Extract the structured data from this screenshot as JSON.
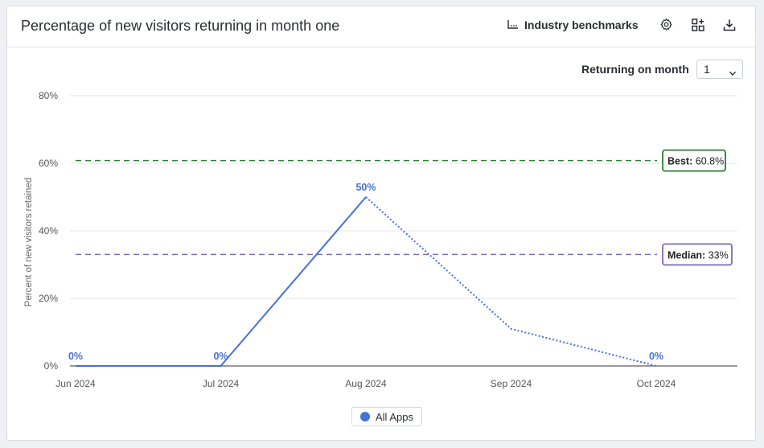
{
  "header": {
    "title": "Percentage of new visitors returning in month one",
    "benchmarks_label": "Industry benchmarks"
  },
  "controls": {
    "returning_label": "Returning on month",
    "month_value": "1"
  },
  "colors": {
    "series": "#4472d9",
    "best": "#2e7d32",
    "median": "#7e6bb7",
    "grid": "#e3e5e8",
    "axis": "#333333"
  },
  "chart_data": {
    "type": "line",
    "title": "Percentage of new visitors returning in month one",
    "xlabel": "",
    "ylabel": "Percent of new visitors retained",
    "categories": [
      "Jun 2024",
      "Jul 2024",
      "Aug 2024",
      "Sep 2024",
      "Oct 2024"
    ],
    "y_ticks": [
      "0%",
      "20%",
      "40%",
      "60%",
      "80%"
    ],
    "ylim": [
      0,
      80
    ],
    "grid": true,
    "legend": "bottom",
    "series": [
      {
        "name": "All Apps",
        "values": [
          0,
          0,
          50,
          11,
          0
        ],
        "data_labels": [
          "0%",
          "0%",
          "50%",
          "",
          "0%"
        ],
        "solid_until_index": 2
      }
    ],
    "benchmarks": [
      {
        "label": "Best:",
        "value_text": "60.8%",
        "value": 60.8
      },
      {
        "label": "Median:",
        "value_text": "33%",
        "value": 33
      }
    ]
  }
}
